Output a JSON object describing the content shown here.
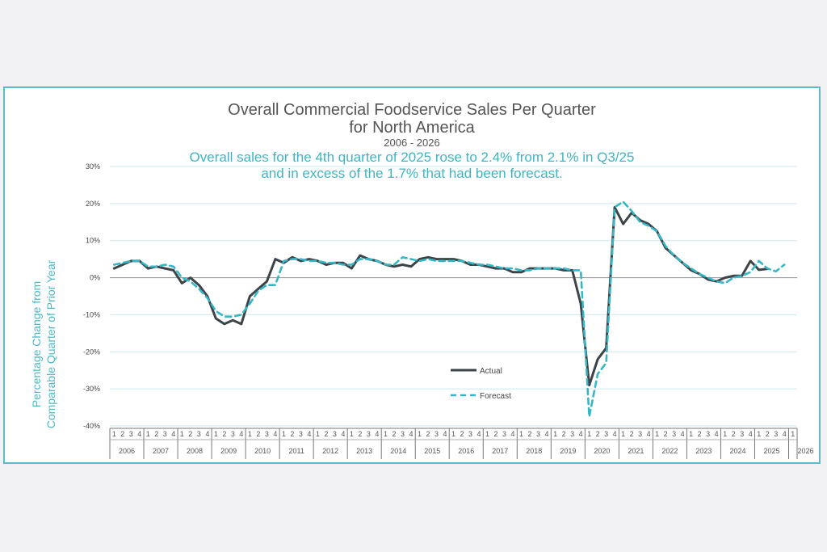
{
  "colors": {
    "actual": "#3d4448",
    "forecast": "#36b7c6",
    "border": "#5bbcc8",
    "grid": "#cfe8ec",
    "zero": "#9aa0a3",
    "subtitle": "#3fb5c3"
  },
  "chart_data": {
    "type": "line",
    "title": "Overall Commercial Foodservice Sales Per Quarter",
    "title_line2": "for North America",
    "date_range": "2006 - 2026",
    "subtitle_line1": "Overall sales for the 4th quarter of 2025 rose to 2.4% from 2.1% in Q3/25",
    "subtitle_line2": "and in excess of the 1.7% that had been forecast.",
    "ylabel_line1": "Percentage Change from",
    "ylabel_line2": "Comparable Quarter of Prior Year",
    "ylim": [
      -40,
      30
    ],
    "y_ticks": [
      {
        "value": 30,
        "label": "30%"
      },
      {
        "value": 20,
        "label": "20%"
      },
      {
        "value": 10,
        "label": "10%"
      },
      {
        "value": 0,
        "label": "0%"
      },
      {
        "value": -10,
        "label": "-10%"
      },
      {
        "value": -20,
        "label": "-20%"
      },
      {
        "value": -30,
        "label": "-30%"
      },
      {
        "value": -40,
        "label": "-40%"
      }
    ],
    "years": [
      "2006",
      "2007",
      "2008",
      "2009",
      "2010",
      "2011",
      "2012",
      "2013",
      "2014",
      "2015",
      "2016",
      "2017",
      "2018",
      "2019",
      "2020",
      "2021",
      "2022",
      "2023",
      "2024",
      "2025",
      "2026"
    ],
    "quarter_labels": [
      "1",
      "2",
      "3",
      "4"
    ],
    "last_year_quarter_label": "1",
    "legend": {
      "actual": "Actual",
      "forecast": "Forecast",
      "position": "lower-center"
    },
    "series": [
      {
        "name": "Actual",
        "style": "solid",
        "values": [
          2.5,
          3.5,
          4.5,
          4.5,
          2.5,
          3,
          2.5,
          2,
          -1.5,
          0,
          -2,
          -5,
          -11,
          -12.5,
          -11.5,
          -12.5,
          -5,
          -3,
          -1,
          5,
          4,
          5.5,
          4.5,
          5,
          4.5,
          3.5,
          4,
          4,
          2.5,
          6,
          5,
          4.5,
          3.5,
          3,
          3.5,
          3,
          5,
          5.5,
          5,
          5,
          5,
          4.5,
          3.5,
          3.5,
          3,
          2.5,
          2.5,
          1.5,
          1.5,
          2.5,
          2.5,
          2.5,
          2.5,
          2,
          2,
          -7,
          -29,
          -22,
          -19,
          19,
          14.5,
          17.5,
          15.5,
          14.5,
          12.5,
          8,
          6,
          4,
          2,
          1,
          -0.5,
          -1,
          0,
          0.5,
          0.5,
          4.5,
          2.1,
          2.4
        ]
      },
      {
        "name": "Forecast",
        "style": "dashed",
        "values": [
          3.5,
          4,
          4.5,
          4.5,
          3,
          3,
          3.5,
          3,
          0,
          -1,
          -3,
          -5.5,
          -9,
          -10.5,
          -10.5,
          -10,
          -7,
          -3.5,
          -2,
          -2,
          4.5,
          5,
          5,
          4.5,
          4.5,
          4,
          4,
          3.5,
          3.5,
          5,
          5,
          4.5,
          3.5,
          3.5,
          5.5,
          5,
          4.5,
          5,
          4.5,
          4.5,
          4.5,
          4.5,
          4,
          3.5,
          3.5,
          3,
          2.5,
          2.5,
          2,
          2,
          2.5,
          2.5,
          2.5,
          2.5,
          2,
          2,
          -37.5,
          -26,
          -23,
          19,
          20.5,
          18,
          15,
          14,
          12.5,
          8.5,
          6,
          4,
          2.5,
          1,
          0,
          -1,
          -1.5,
          0,
          0.5,
          1.5,
          4.5,
          2.5,
          1.7,
          3.5
        ]
      }
    ]
  }
}
